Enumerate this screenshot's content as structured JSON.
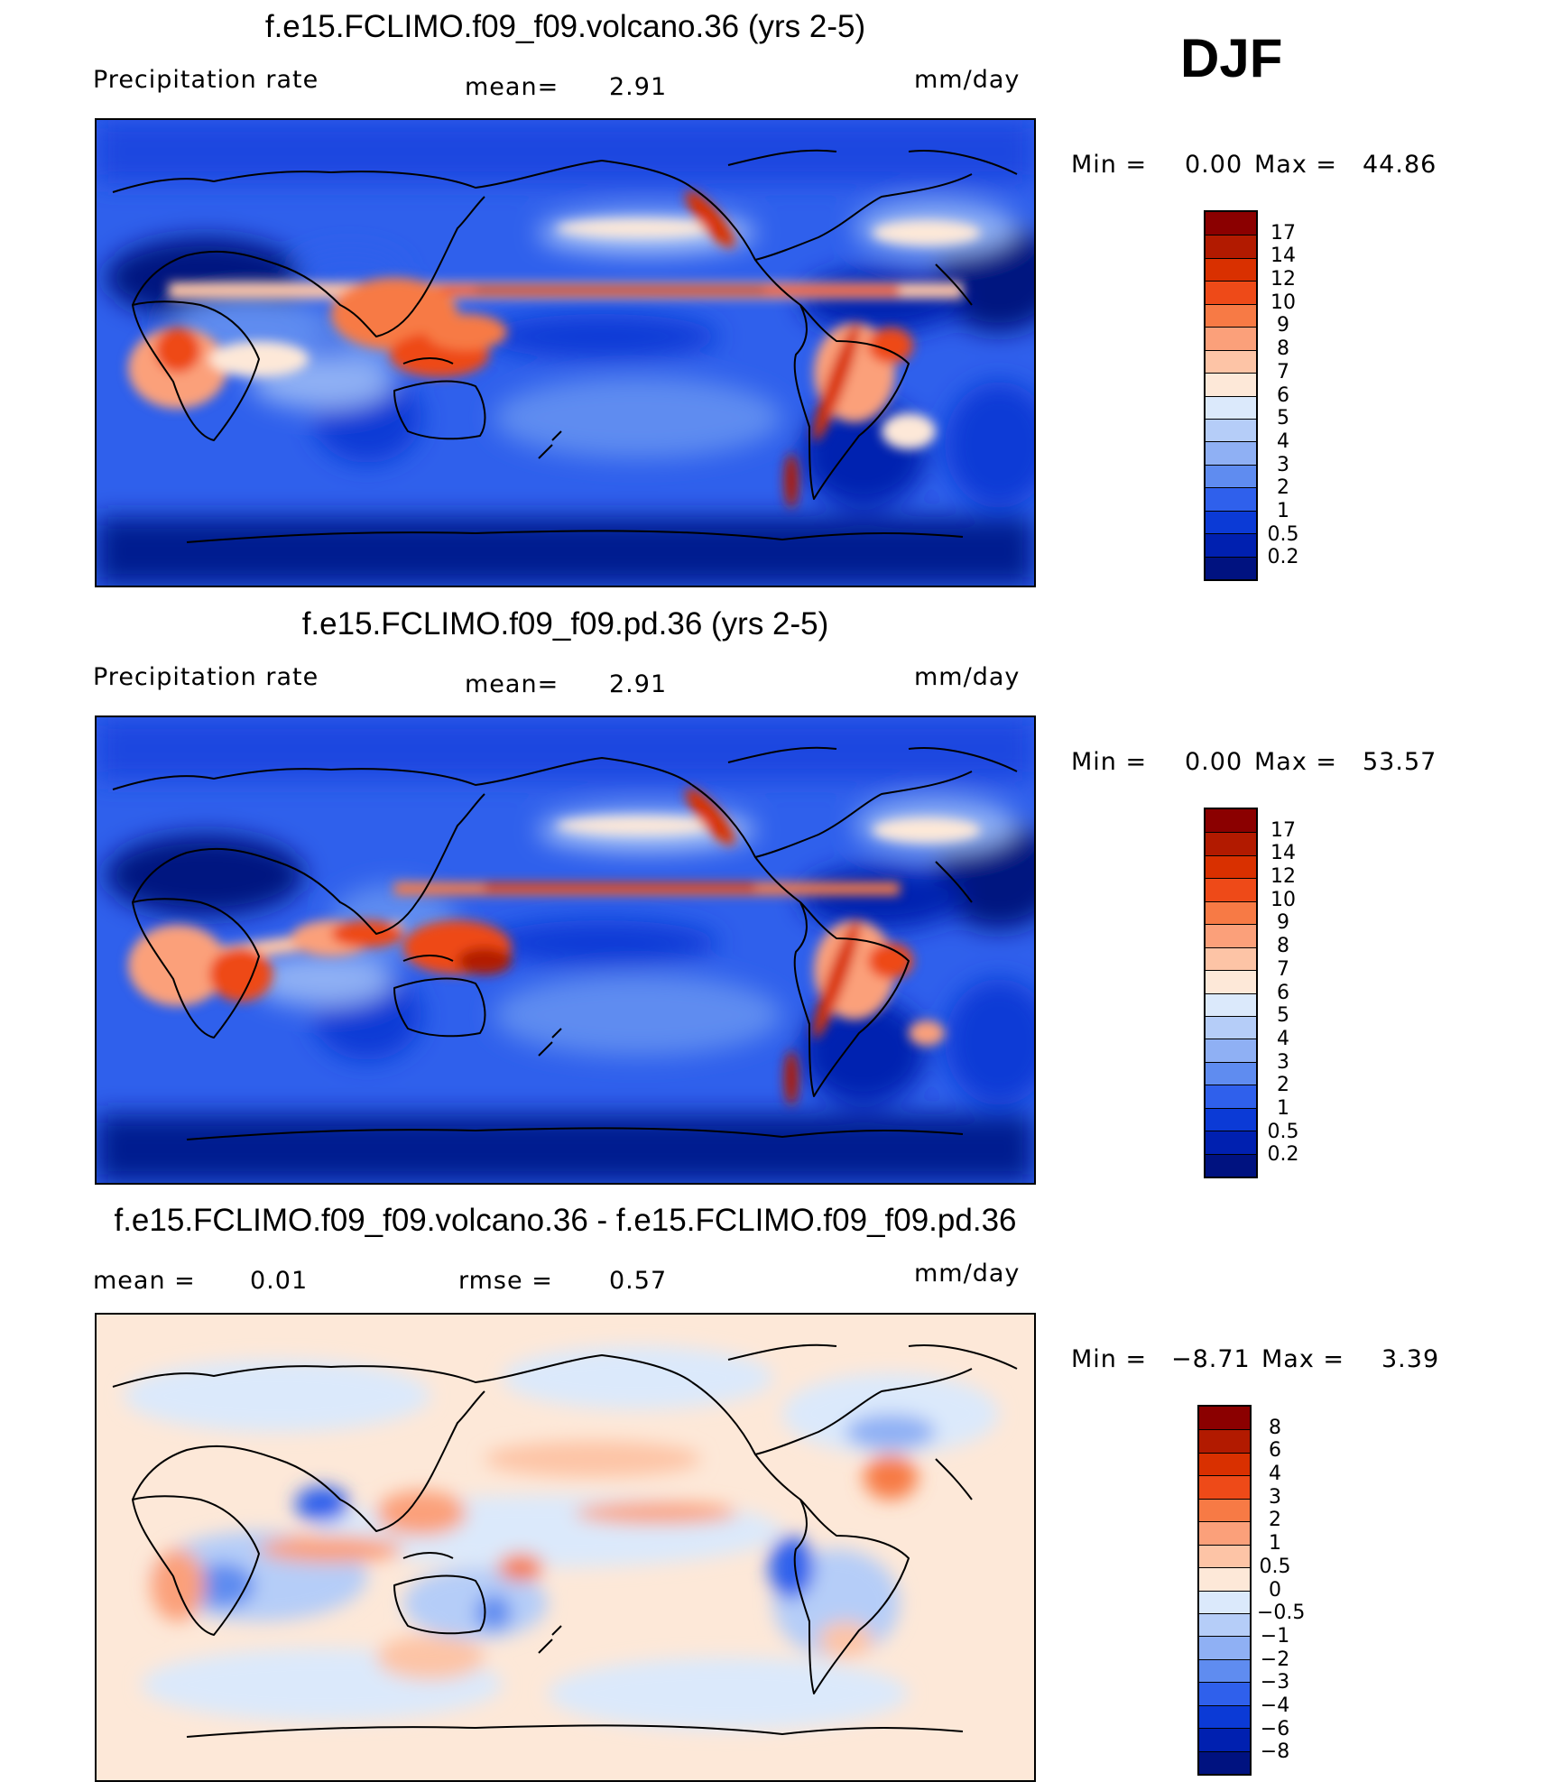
{
  "season": "DJF",
  "panels": [
    {
      "id": "volcano",
      "title": "f.e15.FCLIMO.f09_f09.volcano.36 (yrs 2-5)",
      "variable": "Precipitation rate",
      "mean_label": "mean=",
      "mean_value": "2.91",
      "units": "mm/day",
      "min_label": "Min =",
      "min_value": "0.00",
      "max_label": "Max =",
      "max_value": "44.86"
    },
    {
      "id": "pd",
      "title": "f.e15.FCLIMO.f09_f09.pd.36 (yrs 2-5)",
      "variable": "Precipitation rate",
      "mean_label": "mean=",
      "mean_value": "2.91",
      "units": "mm/day",
      "min_label": "Min =",
      "min_value": "0.00",
      "max_label": "Max =",
      "max_value": "53.57"
    },
    {
      "id": "diff",
      "title": "f.e15.FCLIMO.f09_f09.volcano.36 - f.e15.FCLIMO.f09_f09.pd.36",
      "mean_label": "mean =",
      "mean_value": "0.01",
      "rmse_label": "rmse =",
      "rmse_value": "0.57",
      "units": "mm/day",
      "min_label": "Min =",
      "min_value": "−8.71",
      "max_label": "Max =",
      "max_value": "3.39"
    }
  ],
  "colorbars": {
    "precip": {
      "labels": [
        "17",
        "14",
        "12",
        "10",
        "9",
        "8",
        "7",
        "6",
        "5",
        "4",
        "3",
        "2",
        "1",
        "0.5",
        "0.2"
      ],
      "colors": [
        "#8b0000",
        "#b21a00",
        "#d93000",
        "#ee4a18",
        "#f77a45",
        "#fba07a",
        "#fdc4a6",
        "#fde8d8",
        "#dbe9fb",
        "#b5cdf8",
        "#8fb0f4",
        "#5f8cf0",
        "#2f60ec",
        "#0b3ad6",
        "#0020b0",
        "#001280"
      ]
    },
    "diff": {
      "labels": [
        "8",
        "6",
        "4",
        "3",
        "2",
        "1",
        "0.5",
        "0",
        "−0.5",
        "−1",
        "−2",
        "−3",
        "−4",
        "−6",
        "−8"
      ],
      "colors": [
        "#8b0000",
        "#b21a00",
        "#d93000",
        "#ee4a18",
        "#f77a45",
        "#fba07a",
        "#fdc4a6",
        "#fde8d8",
        "#dbe9fb",
        "#b5cdf8",
        "#8fb0f4",
        "#5f8cf0",
        "#2f60ec",
        "#0b3ad6",
        "#0020b0",
        "#001280"
      ]
    }
  }
}
